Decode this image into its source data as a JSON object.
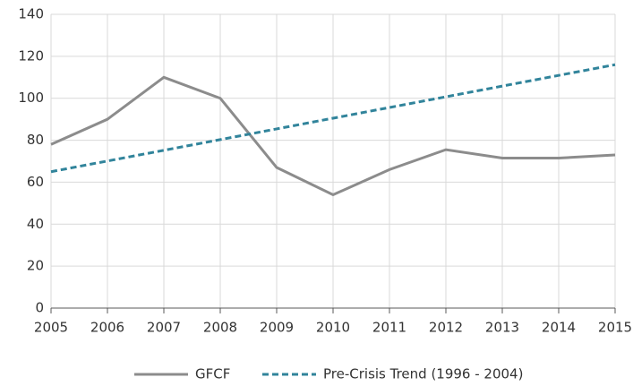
{
  "chart_data": {
    "type": "line",
    "x": [
      2005,
      2006,
      2007,
      2008,
      2009,
      2010,
      2011,
      2012,
      2013,
      2014,
      2015
    ],
    "xlim": [
      2005,
      2015
    ],
    "xticks": [
      2005,
      2006,
      2007,
      2008,
      2009,
      2010,
      2011,
      2012,
      2013,
      2014,
      2015
    ],
    "ylim": [
      0,
      140
    ],
    "yticks": [
      0,
      20,
      40,
      60,
      80,
      100,
      120,
      140
    ],
    "grid": true,
    "legend": "bottom",
    "series": [
      {
        "name": "GFCF",
        "color": "#8c8c8c",
        "dash": false,
        "values": [
          78,
          90,
          110,
          100,
          67,
          54,
          66,
          75.5,
          71.5,
          71.5,
          73
        ]
      },
      {
        "name": "Pre-Crisis Trend (1996 - 2004)",
        "color": "#31849b",
        "dash": true,
        "values": [
          65,
          70.1,
          75.2,
          80.3,
          85.4,
          90.5,
          95.6,
          100.7,
          105.8,
          110.9,
          116
        ]
      }
    ]
  }
}
